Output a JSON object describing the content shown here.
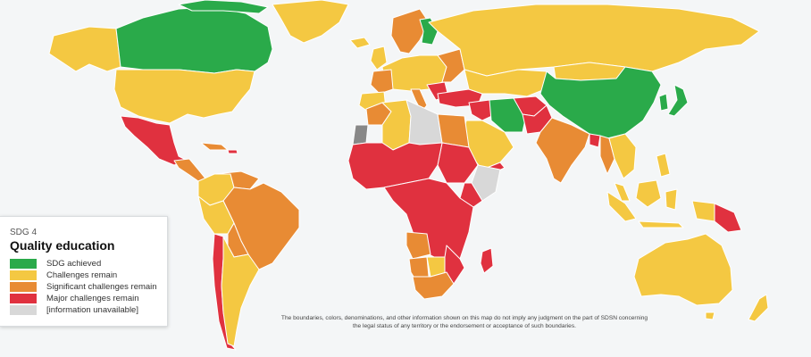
{
  "legend": {
    "subtitle": "SDG 4",
    "title": "Quality education",
    "items": [
      {
        "label": "SDG achieved",
        "color": "#2aaa4a"
      },
      {
        "label": "Challenges remain",
        "color": "#f4c842"
      },
      {
        "label": "Significant challenges remain",
        "color": "#e88b34"
      },
      {
        "label": "Major challenges remain",
        "color": "#e0313f"
      },
      {
        "label": "[information unavailable]",
        "color": "#d8d8d8"
      }
    ]
  },
  "disclaimer": "The boundaries, colors, denominations, and other information shown on this map do not imply any judgment on the part of SDSN concerning the legal status of any territory or the endorsement or acceptance of such boundaries.",
  "colors": {
    "achieved": "#2aaa4a",
    "challenges": "#f4c842",
    "significant": "#e88b34",
    "major": "#e0313f",
    "unavailable": "#d8d8d8",
    "ocean": "#f4f6f7",
    "border": "#ffffff"
  },
  "regions": [
    {
      "name": "Canada",
      "status": "achieved"
    },
    {
      "name": "United States",
      "status": "challenges"
    },
    {
      "name": "Mexico",
      "status": "major"
    },
    {
      "name": "Central America",
      "status": "significant"
    },
    {
      "name": "Brazil",
      "status": "significant"
    },
    {
      "name": "Chile",
      "status": "major"
    },
    {
      "name": "Argentina",
      "status": "challenges"
    },
    {
      "name": "Russia",
      "status": "challenges"
    },
    {
      "name": "China",
      "status": "achieved"
    },
    {
      "name": "Iran",
      "status": "achieved"
    },
    {
      "name": "India",
      "status": "significant"
    },
    {
      "name": "Pakistan",
      "status": "major"
    },
    {
      "name": "Australia",
      "status": "challenges"
    },
    {
      "name": "Japan",
      "status": "achieved"
    },
    {
      "name": "Papua New Guinea",
      "status": "major"
    },
    {
      "name": "Madagascar",
      "status": "major"
    },
    {
      "name": "Libya",
      "status": "unavailable"
    },
    {
      "name": "Egypt",
      "status": "significant"
    }
  ]
}
